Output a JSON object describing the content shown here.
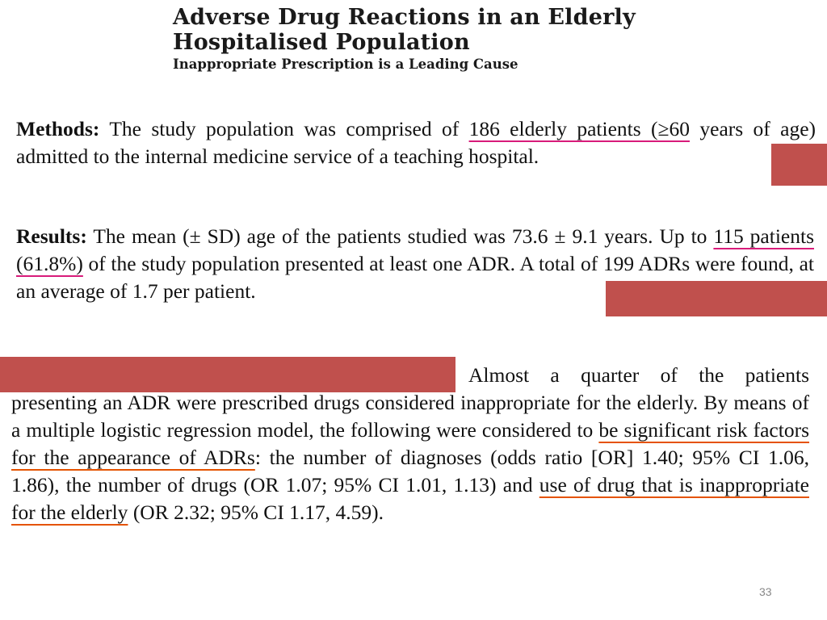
{
  "slide": {
    "title_line1": "Adverse Drug Reactions in an Elderly",
    "title_line2": "Hospitalised Population",
    "subtitle": "Inappropriate Prescription is a Leading Cause",
    "page_number": "33"
  },
  "methods": {
    "label": "Methods:",
    "text_before": " The study population was comprised of ",
    "highlight": "186 elderly patients (≥60",
    "text_after": " years of age) admitted to the internal medicine service of a teaching hospital."
  },
  "results": {
    "label": "Results:",
    "text_before": " The mean (± SD) age of the patients studied was 73.6 ± 9.1 years. Up to ",
    "highlight": "115 patients (61.8%)",
    "text_after": " of the study population presented at least one ADR. A total of 199 ADRs were found, at an average of 1.7 per patient."
  },
  "conclusions": {
    "text_1": "Almost a quarter of the patients presenting an ADR were prescribed drugs considered inappropriate for the elderly. By means of a multiple logistic regression model, the following were considered to ",
    "highlight_1": "be significant risk factors for the appearance of ADRs",
    "text_2": ": the number of diagnoses (odds ratio [OR] 1.40; 95% CI 1.06, 1.86), the number of drugs (OR 1.07; 95% CI 1.01, 1.13) and ",
    "highlight_2": "use of drug that is inappropriate for the elderly",
    "text_3": " (OR 2.32; 95% CI 1.17, 4.59)."
  },
  "colors": {
    "redaction": "#c0504d",
    "underline_pink": "#d81b7a",
    "underline_orange": "#e55300"
  }
}
